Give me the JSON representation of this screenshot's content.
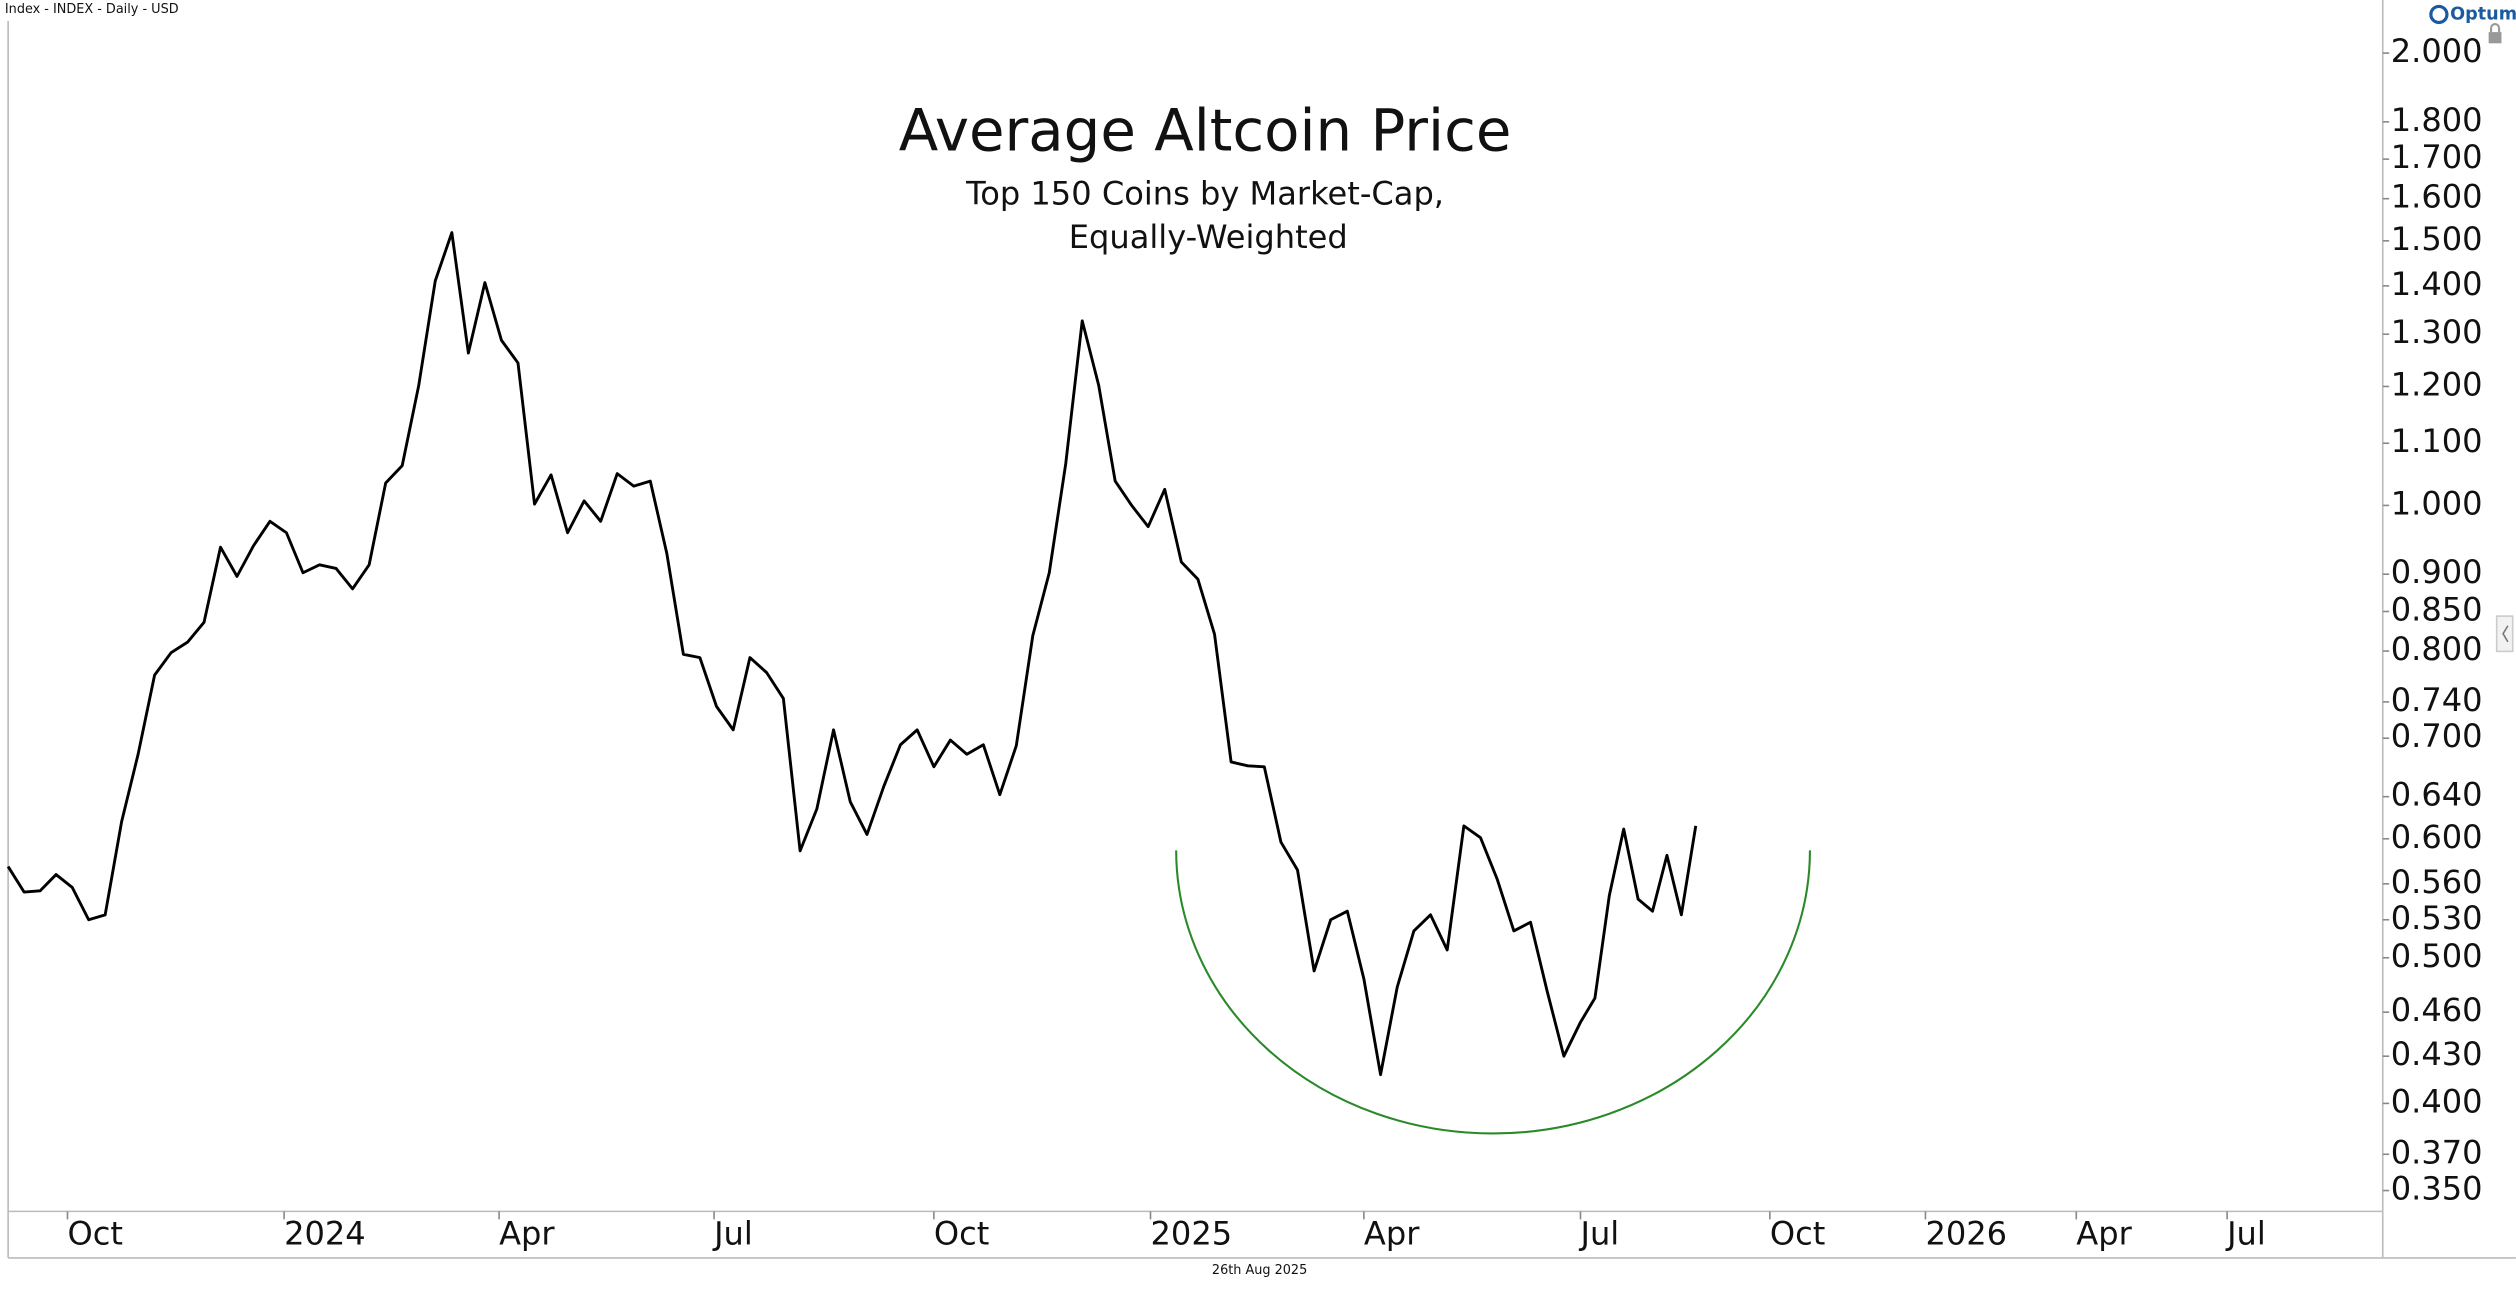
{
  "chart_data": {
    "type": "line",
    "header": "Index - INDEX - Daily - USD",
    "logo": "Optuma",
    "footer": "26th Aug 2025",
    "title": "Average Altcoin Price",
    "subtitle": [
      "Top 150 Coins by Market-Cap,",
      "Equally-Weighted"
    ],
    "log_scale": true,
    "x": [
      "2023-09-05",
      "2023-09-12",
      "2023-09-19",
      "2023-09-26",
      "2023-10-03",
      "2023-10-10",
      "2023-10-17",
      "2023-10-24",
      "2023-10-31",
      "2023-11-07",
      "2023-11-14",
      "2023-11-21",
      "2023-11-28",
      "2023-12-05",
      "2023-12-12",
      "2023-12-19",
      "2023-12-26",
      "2024-01-02",
      "2024-01-09",
      "2024-01-16",
      "2024-01-23",
      "2024-01-30",
      "2024-02-06",
      "2024-02-13",
      "2024-02-20",
      "2024-02-27",
      "2024-03-05",
      "2024-03-12",
      "2024-03-19",
      "2024-03-26",
      "2024-04-02",
      "2024-04-09",
      "2024-04-16",
      "2024-04-23",
      "2024-04-30",
      "2024-05-07",
      "2024-05-14",
      "2024-05-21",
      "2024-05-28",
      "2024-06-04",
      "2024-06-11",
      "2024-06-18",
      "2024-06-25",
      "2024-07-02",
      "2024-07-09",
      "2024-07-16",
      "2024-07-23",
      "2024-07-30",
      "2024-08-06",
      "2024-08-13",
      "2024-08-20",
      "2024-08-27",
      "2024-09-03",
      "2024-09-10",
      "2024-09-17",
      "2024-09-24",
      "2024-10-01",
      "2024-10-08",
      "2024-10-15",
      "2024-10-22",
      "2024-10-29",
      "2024-11-05",
      "2024-11-12",
      "2024-11-19",
      "2024-11-26",
      "2024-12-03",
      "2024-12-10",
      "2024-12-17",
      "2024-12-24",
      "2024-12-31",
      "2025-01-07",
      "2025-01-14",
      "2025-01-21",
      "2025-01-28",
      "2025-02-04",
      "2025-02-11",
      "2025-02-18",
      "2025-02-25",
      "2025-03-04",
      "2025-03-11",
      "2025-03-18",
      "2025-03-25",
      "2025-04-01",
      "2025-04-08",
      "2025-04-15",
      "2025-04-22",
      "2025-04-29",
      "2025-05-06",
      "2025-05-13",
      "2025-05-20",
      "2025-05-27",
      "2025-06-03",
      "2025-06-10",
      "2025-06-17",
      "2025-06-24",
      "2025-07-01",
      "2025-07-08",
      "2025-07-15",
      "2025-07-22",
      "2025-07-29",
      "2025-08-05",
      "2025-08-12",
      "2025-08-19",
      "2025-08-26"
    ],
    "series": [
      {
        "name": "Average Altcoin Price",
        "color": "#000000",
        "values": [
          0.575,
          0.553,
          0.554,
          0.568,
          0.557,
          0.53,
          0.534,
          0.616,
          0.683,
          0.771,
          0.798,
          0.811,
          0.836,
          0.938,
          0.897,
          0.94,
          0.976,
          0.959,
          0.902,
          0.913,
          0.908,
          0.88,
          0.913,
          1.035,
          1.063,
          1.202,
          1.411,
          1.519,
          1.263,
          1.407,
          1.288,
          1.244,
          1.002,
          1.048,
          0.959,
          1.007,
          0.976,
          1.05,
          1.03,
          1.038,
          0.929,
          0.796,
          0.792,
          0.735,
          0.709,
          0.792,
          0.774,
          0.744,
          0.589,
          0.628,
          0.709,
          0.635,
          0.604,
          0.65,
          0.693,
          0.709,
          0.67,
          0.698,
          0.683,
          0.693,
          0.642,
          0.692,
          0.819,
          0.902,
          1.066,
          1.327,
          1.202,
          1.038,
          1.0,
          0.968,
          1.025,
          0.917,
          0.893,
          0.821,
          0.675,
          0.671,
          0.67,
          0.597,
          0.572,
          0.49,
          0.53,
          0.537,
          0.484,
          0.418,
          0.478,
          0.521,
          0.534,
          0.506,
          0.612,
          0.601,
          0.564,
          0.521,
          0.528,
          0.475,
          0.43,
          0.453,
          0.47,
          0.55,
          0.609,
          0.547,
          0.537,
          0.585,
          0.534,
          0.612
        ]
      }
    ],
    "xlim": [
      "2023-09-05",
      "2026-10-05"
    ],
    "xticks": [
      {
        "value": "2023-10-01",
        "label": "Oct"
      },
      {
        "value": "2024-01-01",
        "label": "2024"
      },
      {
        "value": "2024-04-01",
        "label": "Apr"
      },
      {
        "value": "2024-07-01",
        "label": "Jul"
      },
      {
        "value": "2024-10-01",
        "label": "Oct"
      },
      {
        "value": "2025-01-01",
        "label": "2025"
      },
      {
        "value": "2025-04-01",
        "label": "Apr"
      },
      {
        "value": "2025-07-01",
        "label": "Jul"
      },
      {
        "value": "2025-10-01",
        "label": "Oct"
      },
      {
        "value": "2026-01-01",
        "label": "2026"
      },
      {
        "value": "2026-04-01",
        "label": "Apr"
      },
      {
        "value": "2026-07-01",
        "label": "Jul"
      }
    ],
    "ylim": [
      0.339,
      2.143
    ],
    "yticks": [
      {
        "value": 2,
        "label": "2.000"
      },
      {
        "value": 1.8,
        "label": "1.800"
      },
      {
        "value": 1.7,
        "label": "1.700"
      },
      {
        "value": 1.6,
        "label": "1.600"
      },
      {
        "value": 1.5,
        "label": "1.500"
      },
      {
        "value": 1.4,
        "label": "1.400"
      },
      {
        "value": 1.3,
        "label": "1.300"
      },
      {
        "value": 1.2,
        "label": "1.200"
      },
      {
        "value": 1.1,
        "label": "1.100"
      },
      {
        "value": 1,
        "label": "1.000"
      },
      {
        "value": 0.9,
        "label": "0.900"
      },
      {
        "value": 0.85,
        "label": "0.850"
      },
      {
        "value": 0.8,
        "label": "0.800"
      },
      {
        "value": 0.74,
        "label": "0.740"
      },
      {
        "value": 0.7,
        "label": "0.700"
      },
      {
        "value": 0.64,
        "label": "0.640"
      },
      {
        "value": 0.6,
        "label": "0.600"
      },
      {
        "value": 0.56,
        "label": "0.560"
      },
      {
        "value": 0.53,
        "label": "0.530"
      },
      {
        "value": 0.5,
        "label": "0.500"
      },
      {
        "value": 0.46,
        "label": "0.460"
      },
      {
        "value": 0.43,
        "label": "0.430"
      },
      {
        "value": 0.4,
        "label": "0.400"
      },
      {
        "value": 0.37,
        "label": "0.370"
      },
      {
        "value": 0.35,
        "label": "0.350"
      }
    ]
  }
}
